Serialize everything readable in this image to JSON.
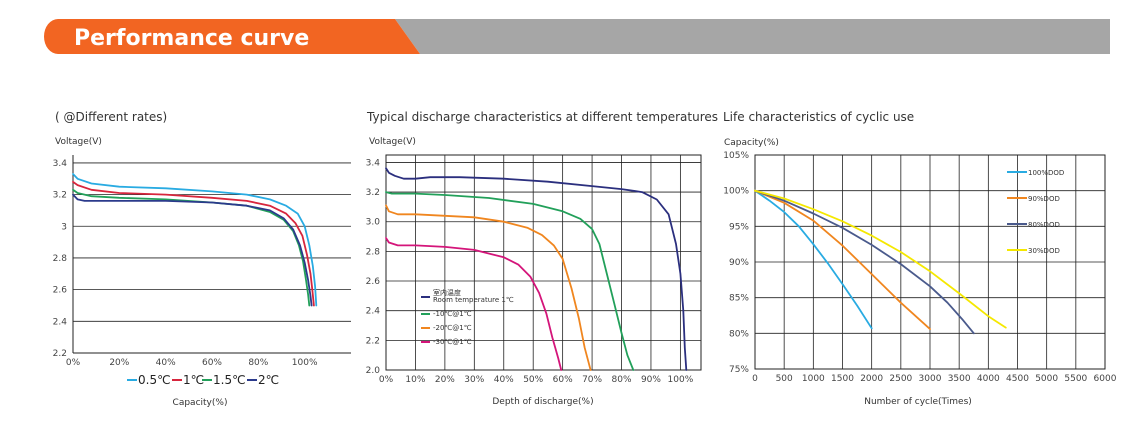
{
  "header": {
    "title": "Performance curve",
    "accent_color": "#F26522",
    "bar_color": "#A6A6A6"
  },
  "chart_data": [
    {
      "id": "rates",
      "type": "line",
      "title": "( @Different rates)",
      "ylabel": "Voltage(V)",
      "xlabel": "Capacity(%)",
      "xlim": [
        0,
        120
      ],
      "ylim": [
        2.2,
        3.45
      ],
      "yticks": [
        2.2,
        2.4,
        2.6,
        2.8,
        3.0,
        3.2,
        3.4
      ],
      "ytick_labels": [
        "2.2",
        "2.4",
        "2.6",
        "2.8",
        "3",
        "3.2",
        "3.4"
      ],
      "xticks": [
        0,
        20,
        40,
        60,
        80,
        100
      ],
      "xtick_labels": [
        "0%",
        "20%",
        "40%",
        "60%",
        "80%",
        "100%"
      ],
      "grid": "horizontal",
      "legend": "bottom",
      "series": [
        {
          "name": "0.5℃",
          "color": "#29ABE2",
          "x": [
            0,
            2,
            8,
            20,
            40,
            60,
            75,
            85,
            92,
            97,
            100,
            102,
            103.5,
            104.5,
            105
          ],
          "y": [
            3.33,
            3.3,
            3.27,
            3.25,
            3.24,
            3.22,
            3.2,
            3.17,
            3.13,
            3.08,
            3.0,
            2.88,
            2.75,
            2.62,
            2.5
          ]
        },
        {
          "name": "1℃",
          "color": "#D7263D",
          "x": [
            0,
            2,
            8,
            20,
            40,
            60,
            75,
            85,
            92,
            96,
            99,
            101,
            102.5,
            103.3,
            104
          ],
          "y": [
            3.28,
            3.26,
            3.23,
            3.21,
            3.2,
            3.18,
            3.16,
            3.13,
            3.08,
            3.02,
            2.94,
            2.82,
            2.7,
            2.6,
            2.5
          ]
        },
        {
          "name": "1.5℃",
          "color": "#22A05A",
          "x": [
            0,
            2,
            8,
            20,
            40,
            60,
            75,
            85,
            91,
            95,
            97.5,
            99.3,
            100.5,
            101.5,
            102
          ],
          "y": [
            3.23,
            3.21,
            3.19,
            3.18,
            3.17,
            3.15,
            3.13,
            3.09,
            3.04,
            2.97,
            2.88,
            2.78,
            2.67,
            2.57,
            2.5
          ]
        },
        {
          "name": "2℃",
          "color": "#2B3A8C",
          "x": [
            0,
            2,
            5,
            10,
            20,
            40,
            60,
            75,
            85,
            91,
            95,
            98,
            100,
            101.5,
            102.5,
            103
          ],
          "y": [
            3.2,
            3.17,
            3.16,
            3.16,
            3.16,
            3.16,
            3.15,
            3.13,
            3.1,
            3.05,
            2.98,
            2.88,
            2.77,
            2.66,
            2.56,
            2.5
          ]
        }
      ]
    },
    {
      "id": "temperature",
      "type": "line",
      "title": "Typical discharge characteristics at different temperatures",
      "ylabel": "Voltage(V)",
      "xlabel": "Depth of discharge(%)",
      "xlim": [
        0,
        107
      ],
      "ylim": [
        2.0,
        3.45
      ],
      "yticks": [
        2.0,
        2.2,
        2.4,
        2.6,
        2.8,
        3.0,
        3.2,
        3.4
      ],
      "ytick_labels": [
        "2.0",
        "2.2",
        "2.4",
        "2.6",
        "2.8",
        "3.0",
        "3.2",
        "3.4"
      ],
      "xticks": [
        0,
        10,
        20,
        30,
        40,
        50,
        60,
        70,
        80,
        90,
        100
      ],
      "xtick_labels": [
        "0%",
        "10%",
        "20%",
        "30%",
        "40%",
        "50%",
        "60%",
        "70%",
        "80%",
        "90%",
        "100%"
      ],
      "grid": "both",
      "legend": "lower-left",
      "series": [
        {
          "name": "室内温度\nRoom temperature 1℃",
          "color": "#2B2F7E",
          "x": [
            0,
            1,
            3,
            6,
            10,
            15,
            25,
            40,
            55,
            70,
            80,
            87,
            92,
            96,
            98.5,
            100,
            101,
            101.5,
            102
          ],
          "y": [
            3.36,
            3.33,
            3.31,
            3.29,
            3.29,
            3.3,
            3.3,
            3.29,
            3.27,
            3.24,
            3.22,
            3.2,
            3.15,
            3.05,
            2.85,
            2.65,
            2.4,
            2.15,
            2.0
          ]
        },
        {
          "name": "-10℃@1℃",
          "color": "#22A05A",
          "x": [
            0,
            2,
            10,
            20,
            35,
            50,
            60,
            66,
            70,
            72.5,
            75,
            77.5,
            80,
            82,
            84
          ],
          "y": [
            3.2,
            3.19,
            3.19,
            3.18,
            3.16,
            3.12,
            3.07,
            3.02,
            2.95,
            2.85,
            2.65,
            2.45,
            2.25,
            2.1,
            2.0
          ]
        },
        {
          "name": "-20℃@1℃",
          "color": "#F0861F",
          "x": [
            0,
            1,
            4,
            10,
            20,
            30,
            40,
            48,
            53,
            57,
            60,
            63,
            65.5,
            67.5,
            69.5
          ],
          "y": [
            3.11,
            3.07,
            3.05,
            3.05,
            3.04,
            3.03,
            3.0,
            2.96,
            2.91,
            2.84,
            2.75,
            2.55,
            2.35,
            2.15,
            2.0
          ]
        },
        {
          "name": "-30℃@1℃",
          "color": "#D4157A",
          "x": [
            0,
            1,
            4,
            10,
            20,
            30,
            40,
            45,
            49,
            52,
            54.5,
            56.5,
            58.5,
            59.5
          ],
          "y": [
            2.89,
            2.86,
            2.84,
            2.84,
            2.83,
            2.81,
            2.76,
            2.71,
            2.63,
            2.52,
            2.38,
            2.22,
            2.08,
            2.0
          ]
        }
      ]
    },
    {
      "id": "cycle",
      "type": "line",
      "title": "Life characteristics of cyclic use",
      "ylabel": "Capacity(%)",
      "xlabel": "Number of cycle(Times)",
      "xlim": [
        0,
        6000
      ],
      "ylim": [
        75,
        105
      ],
      "yticks": [
        75,
        80,
        85,
        90,
        95,
        100,
        105
      ],
      "ytick_labels": [
        "75%",
        "80%",
        "85%",
        "90%",
        "95%",
        "100%",
        "105%"
      ],
      "xticks": [
        0,
        500,
        1000,
        1500,
        2000,
        2500,
        3000,
        3500,
        4000,
        4500,
        5000,
        5500,
        6000
      ],
      "xtick_labels": [
        "0",
        "500",
        "1000",
        "1500",
        "2000",
        "2500",
        "3000",
        "3500",
        "4000",
        "4500",
        "5000",
        "5500",
        "6000"
      ],
      "grid": "both",
      "legend": "right",
      "series": [
        {
          "name": "100%DOD",
          "color": "#29ABE2",
          "x": [
            0,
            250,
            500,
            750,
            1000,
            1250,
            1500,
            1750,
            2000
          ],
          "y": [
            100,
            98.6,
            97.0,
            95.0,
            92.5,
            89.8,
            86.9,
            83.9,
            80.7
          ]
        },
        {
          "name": "90%DOD",
          "color": "#F0861F",
          "x": [
            0,
            500,
            1000,
            1500,
            2000,
            2500,
            3000
          ],
          "y": [
            100,
            98.3,
            95.8,
            92.3,
            88.3,
            84.3,
            80.6
          ]
        },
        {
          "name": "80%DOD",
          "color": "#4A5A8C",
          "x": [
            0,
            500,
            1000,
            1500,
            2000,
            2500,
            3000,
            3300,
            3550,
            3750
          ],
          "y": [
            100,
            98.6,
            96.8,
            94.8,
            92.4,
            89.7,
            86.6,
            84.3,
            82.0,
            80.0
          ]
        },
        {
          "name": "30%DOD",
          "color": "#F5E800",
          "x": [
            0,
            500,
            1000,
            1500,
            2000,
            2500,
            3000,
            3500,
            4000,
            4300
          ],
          "y": [
            100,
            98.9,
            97.4,
            95.7,
            93.7,
            91.4,
            88.7,
            85.6,
            82.4,
            80.8
          ]
        }
      ]
    }
  ]
}
